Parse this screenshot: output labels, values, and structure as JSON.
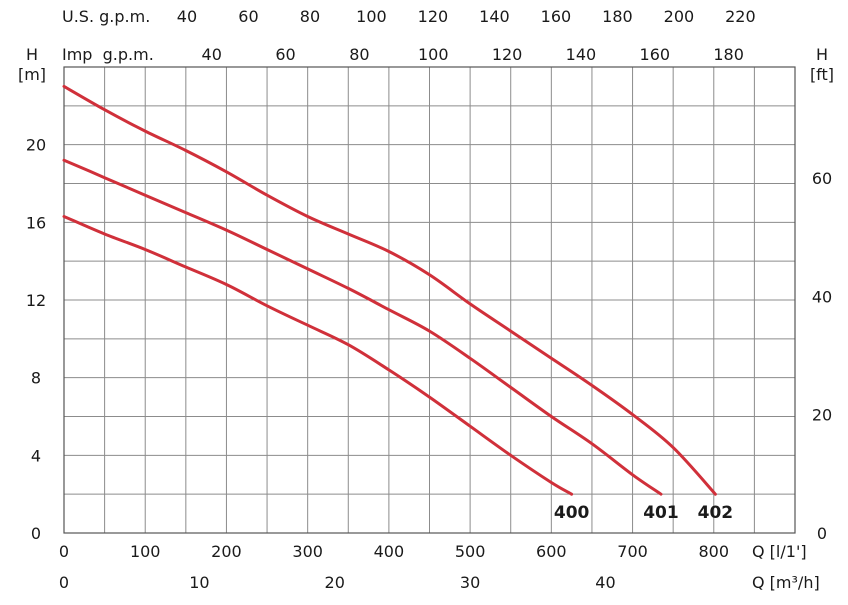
{
  "chart_data": {
    "type": "line",
    "x_unit_label": "Q [l/1']",
    "x_alt_unit_label": "Q [m³/h]",
    "y_left_label": "H",
    "y_left_unit": "[m]",
    "y_right_label": "H",
    "y_right_unit": "[ft]",
    "top_axis_1_label": "U.S. g.p.m.",
    "top_axis_2_label": "Imp  g.p.m.",
    "xlim": [
      0,
      900
    ],
    "ylim": [
      0,
      24
    ],
    "grid": true,
    "x_ticks": [
      "0",
      "100",
      "200",
      "300",
      "400",
      "500",
      "600",
      "700",
      "800"
    ],
    "x_alt_ticks": [
      "0",
      "10",
      "20",
      "30",
      "40"
    ],
    "y_left_ticks": [
      "0",
      "4",
      "8",
      "12",
      "16",
      "20"
    ],
    "y_right_ticks": [
      "0",
      "20",
      "40",
      "60"
    ],
    "us_gpm_ticks": [
      "40",
      "60",
      "80",
      "100",
      "120",
      "140",
      "160",
      "180",
      "200",
      "220"
    ],
    "imp_gpm_ticks": [
      "40",
      "60",
      "80",
      "100",
      "120",
      "140",
      "160",
      "180"
    ],
    "curve_color": "#d0303a",
    "series": [
      {
        "name": "400",
        "x": [
          0,
          50,
          100,
          150,
          200,
          250,
          300,
          350,
          400,
          450,
          500,
          550,
          600,
          625
        ],
        "y": [
          16.3,
          15.4,
          14.6,
          13.7,
          12.8,
          11.7,
          10.7,
          9.7,
          8.4,
          7.0,
          5.5,
          4.0,
          2.6,
          2.0
        ]
      },
      {
        "name": "401",
        "x": [
          0,
          50,
          100,
          150,
          200,
          250,
          300,
          350,
          400,
          450,
          500,
          550,
          600,
          650,
          700,
          735
        ],
        "y": [
          19.2,
          18.3,
          17.4,
          16.5,
          15.6,
          14.6,
          13.6,
          12.6,
          11.5,
          10.4,
          9.0,
          7.5,
          6.0,
          4.6,
          3.0,
          2.0
        ]
      },
      {
        "name": "402",
        "x": [
          0,
          50,
          100,
          150,
          200,
          250,
          300,
          350,
          400,
          450,
          500,
          550,
          600,
          650,
          700,
          750,
          802
        ],
        "y": [
          23.0,
          21.8,
          20.7,
          19.7,
          18.6,
          17.4,
          16.3,
          15.4,
          14.5,
          13.3,
          11.8,
          10.4,
          9.0,
          7.6,
          6.1,
          4.4,
          2.0
        ]
      }
    ]
  }
}
